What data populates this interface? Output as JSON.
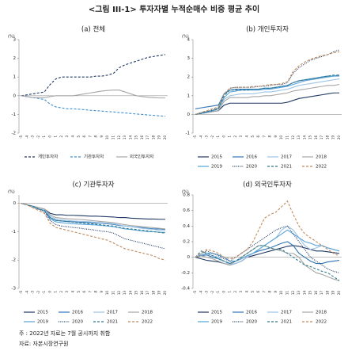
{
  "header": {
    "title": "<그림 III-1> 투자자별 누적순매수 비중 평균 추이"
  },
  "notes": [
    "주 : 2022년 자료는 7월 공시까지 취함",
    "자료: 자본시장연구원"
  ],
  "chart_data": [
    {
      "type": "line",
      "title": "(a) 전체",
      "y_unit": "(%)",
      "legend": "bottom",
      "legend_columns": 3,
      "grid": false,
      "categories": [
        "-5",
        "-4",
        "-3",
        "-2",
        "-1",
        "0",
        "1",
        "2",
        "3",
        "4",
        "5",
        "6",
        "7",
        "8",
        "9",
        "10",
        "11",
        "12",
        "13",
        "14",
        "15",
        "16",
        "17",
        "18",
        "19",
        "20"
      ],
      "ylim": [
        -2,
        3
      ],
      "yticks": [
        -2,
        -1,
        0,
        1,
        2,
        3
      ],
      "series": [
        {
          "name": "개인투자자",
          "color": "#1f3864",
          "dash": "dashed",
          "values": [
            0,
            0.05,
            0.1,
            0.15,
            0.2,
            0.6,
            0.9,
            1.0,
            1.0,
            1.0,
            1.0,
            1.0,
            1.0,
            1.05,
            1.05,
            1.1,
            1.2,
            1.5,
            1.65,
            1.75,
            1.85,
            1.95,
            2.05,
            2.1,
            2.15,
            2.2
          ]
        },
        {
          "name": "기관투자자",
          "color": "#3d8fd1",
          "dash": "dashed",
          "values": [
            0,
            -0.05,
            -0.1,
            -0.15,
            -0.2,
            -0.45,
            -0.6,
            -0.65,
            -0.7,
            -0.7,
            -0.72,
            -0.75,
            -0.78,
            -0.8,
            -0.82,
            -0.85,
            -0.87,
            -0.9,
            -0.92,
            -0.95,
            -0.98,
            -1.0,
            -1.03,
            -1.05,
            -1.08,
            -1.1
          ]
        },
        {
          "name": "외국인투자자",
          "color": "#a6a6a6",
          "dash": "solid",
          "values": [
            0,
            -0.05,
            -0.1,
            -0.1,
            -0.1,
            -0.05,
            0,
            0,
            0,
            0,
            0.05,
            0.1,
            0.15,
            0.2,
            0.25,
            0.28,
            0.3,
            0.3,
            0.2,
            0.1,
            0,
            -0.05,
            -0.08,
            -0.1,
            -0.12,
            -0.12
          ]
        }
      ]
    },
    {
      "type": "line",
      "title": "(b) 개인투자자",
      "y_unit": "(%)",
      "legend": "bottom",
      "legend_columns": 4,
      "grid": false,
      "categories": [
        "-5",
        "-4",
        "-3",
        "-2",
        "-1",
        "0",
        "1",
        "2",
        "3",
        "4",
        "5",
        "6",
        "7",
        "8",
        "9",
        "10",
        "11",
        "12",
        "13",
        "14",
        "15",
        "16",
        "17",
        "18",
        "19",
        "20"
      ],
      "ylim": [
        -1,
        4
      ],
      "yticks": [
        -1,
        0,
        1,
        2,
        3,
        4
      ],
      "series": [
        {
          "name": "2015",
          "color": "#1f3864",
          "dash": "solid",
          "values": [
            0,
            0.05,
            0.1,
            0.15,
            0.2,
            0.5,
            0.6,
            0.6,
            0.6,
            0.6,
            0.6,
            0.6,
            0.6,
            0.6,
            0.6,
            0.6,
            0.65,
            0.75,
            0.85,
            0.9,
            0.95,
            1.0,
            1.05,
            1.1,
            1.15,
            1.15
          ]
        },
        {
          "name": "2016",
          "color": "#2e75b6",
          "dash": "solid",
          "values": [
            0.3,
            0.35,
            0.4,
            0.45,
            0.5,
            1.1,
            1.3,
            1.35,
            1.35,
            1.35,
            1.35,
            1.35,
            1.4,
            1.4,
            1.45,
            1.5,
            1.55,
            1.7,
            1.8,
            1.85,
            1.9,
            1.95,
            2.0,
            2.05,
            2.05,
            2.1
          ]
        },
        {
          "name": "2017",
          "color": "#9dc3e6",
          "dash": "solid",
          "values": [
            0,
            0.1,
            0.15,
            0.2,
            0.3,
            0.8,
            1.0,
            1.05,
            1.1,
            1.1,
            1.1,
            1.15,
            1.2,
            1.2,
            1.25,
            1.3,
            1.35,
            1.45,
            1.55,
            1.6,
            1.65,
            1.7,
            1.75,
            1.8,
            1.85,
            1.9
          ]
        },
        {
          "name": "2018",
          "color": "#a6a6a6",
          "dash": "solid",
          "values": [
            0,
            0.05,
            0.1,
            0.15,
            0.2,
            0.7,
            0.9,
            0.9,
            0.9,
            0.9,
            0.95,
            0.95,
            1.0,
            1.0,
            1.05,
            1.1,
            1.15,
            1.25,
            1.3,
            1.35,
            1.4,
            1.45,
            1.5,
            1.55,
            1.55,
            1.6
          ]
        },
        {
          "name": "2019",
          "color": "#5ba3d9",
          "dash": "solid",
          "values": [
            0,
            0.05,
            0.1,
            0.2,
            0.3,
            0.9,
            1.2,
            1.25,
            1.3,
            1.3,
            1.3,
            1.3,
            1.35,
            1.35,
            1.4,
            1.45,
            1.5,
            1.6,
            1.7,
            1.8,
            1.85,
            1.9,
            1.95,
            2.0,
            2.05,
            2.05
          ]
        },
        {
          "name": "2020",
          "color": "#1f3864",
          "dash": "dotted",
          "values": [
            0,
            0.1,
            0.15,
            0.25,
            0.35,
            1.1,
            1.4,
            1.45,
            1.45,
            1.45,
            1.45,
            1.5,
            1.5,
            1.55,
            1.6,
            1.6,
            1.7,
            2.2,
            2.5,
            2.7,
            2.9,
            3.0,
            3.1,
            3.2,
            3.35,
            3.45
          ]
        },
        {
          "name": "2021",
          "color": "#2b7a8c",
          "dash": "dashed",
          "values": [
            0,
            0.05,
            0.15,
            0.2,
            0.3,
            1.0,
            1.3,
            1.3,
            1.3,
            1.3,
            1.35,
            1.35,
            1.4,
            1.4,
            1.45,
            1.5,
            1.55,
            1.7,
            1.8,
            1.85,
            1.9,
            1.95,
            2.0,
            2.05,
            2.1,
            2.1
          ]
        },
        {
          "name": "2022",
          "color": "#c0895a",
          "dash": "dashed",
          "values": [
            0,
            0.1,
            0.2,
            0.3,
            0.4,
            1.1,
            1.4,
            1.45,
            1.45,
            1.45,
            1.5,
            1.5,
            1.55,
            1.6,
            1.6,
            1.65,
            1.75,
            2.3,
            2.6,
            2.8,
            2.95,
            3.05,
            3.15,
            3.2,
            3.3,
            3.35
          ]
        }
      ]
    },
    {
      "type": "line",
      "title": "(c) 기관투자자",
      "y_unit": "(%)",
      "legend": "bottom",
      "legend_columns": 4,
      "grid": false,
      "categories": [
        "-5",
        "-4",
        "-3",
        "-2",
        "-1",
        "0",
        "1",
        "2",
        "3",
        "4",
        "5",
        "6",
        "7",
        "8",
        "9",
        "10",
        "11",
        "12",
        "13",
        "14",
        "15",
        "16",
        "17",
        "18",
        "19",
        "20"
      ],
      "ylim": [
        -3,
        0.3
      ],
      "yticks": [
        -3,
        -2,
        -1,
        0
      ],
      "series": [
        {
          "name": "2015",
          "color": "#1f3864",
          "dash": "solid",
          "values": [
            0,
            -0.05,
            -0.1,
            -0.15,
            -0.2,
            -0.35,
            -0.4,
            -0.4,
            -0.42,
            -0.42,
            -0.43,
            -0.44,
            -0.45,
            -0.45,
            -0.46,
            -0.47,
            -0.48,
            -0.5,
            -0.5,
            -0.52,
            -0.53,
            -0.54,
            -0.55,
            -0.55,
            -0.56,
            -0.56
          ]
        },
        {
          "name": "2016",
          "color": "#2e75b6",
          "dash": "solid",
          "values": [
            0,
            -0.05,
            -0.1,
            -0.2,
            -0.25,
            -0.5,
            -0.6,
            -0.62,
            -0.64,
            -0.65,
            -0.66,
            -0.67,
            -0.68,
            -0.7,
            -0.7,
            -0.72,
            -0.74,
            -0.78,
            -0.8,
            -0.82,
            -0.84,
            -0.86,
            -0.88,
            -0.9,
            -0.9,
            -0.92
          ]
        },
        {
          "name": "2017",
          "color": "#9dc3e6",
          "dash": "solid",
          "values": [
            0,
            -0.05,
            -0.1,
            -0.15,
            -0.2,
            -0.45,
            -0.55,
            -0.58,
            -0.6,
            -0.62,
            -0.63,
            -0.64,
            -0.65,
            -0.67,
            -0.68,
            -0.7,
            -0.72,
            -0.76,
            -0.8,
            -0.82,
            -0.85,
            -0.88,
            -0.9,
            -0.92,
            -0.95,
            -0.97
          ]
        },
        {
          "name": "2018",
          "color": "#a6a6a6",
          "dash": "solid",
          "values": [
            0,
            -0.05,
            -0.1,
            -0.15,
            -0.2,
            -0.4,
            -0.5,
            -0.52,
            -0.54,
            -0.55,
            -0.56,
            -0.58,
            -0.6,
            -0.62,
            -0.64,
            -0.66,
            -0.68,
            -0.72,
            -0.75,
            -0.78,
            -0.8,
            -0.82,
            -0.84,
            -0.86,
            -0.88,
            -0.9
          ]
        },
        {
          "name": "2019",
          "color": "#5ba3d9",
          "dash": "solid",
          "values": [
            0,
            -0.05,
            -0.1,
            -0.2,
            -0.25,
            -0.55,
            -0.65,
            -0.68,
            -0.7,
            -0.72,
            -0.73,
            -0.74,
            -0.75,
            -0.76,
            -0.78,
            -0.8,
            -0.82,
            -0.86,
            -0.9,
            -0.92,
            -0.95,
            -0.97,
            -1.0,
            -1.0,
            -1.02,
            -1.03
          ]
        },
        {
          "name": "2020",
          "color": "#1f3864",
          "dash": "dotted",
          "values": [
            0,
            -0.05,
            -0.15,
            -0.2,
            -0.3,
            -0.6,
            -0.75,
            -0.8,
            -0.82,
            -0.85,
            -0.87,
            -0.9,
            -0.92,
            -0.95,
            -0.98,
            -1.0,
            -1.05,
            -1.15,
            -1.25,
            -1.3,
            -1.35,
            -1.4,
            -1.45,
            -1.5,
            -1.55,
            -1.6
          ]
        },
        {
          "name": "2021",
          "color": "#2b7a8c",
          "dash": "dashed",
          "values": [
            0,
            -0.05,
            -0.1,
            -0.2,
            -0.25,
            -0.5,
            -0.6,
            -0.62,
            -0.64,
            -0.66,
            -0.68,
            -0.7,
            -0.72,
            -0.74,
            -0.76,
            -0.78,
            -0.8,
            -0.85,
            -0.88,
            -0.9,
            -0.92,
            -0.95,
            -0.97,
            -1.0,
            -1.02,
            -1.05
          ]
        },
        {
          "name": "2022",
          "color": "#c0895a",
          "dash": "dashed",
          "values": [
            0,
            -0.05,
            -0.15,
            -0.25,
            -0.35,
            -0.7,
            -0.85,
            -0.9,
            -0.95,
            -1.0,
            -1.05,
            -1.1,
            -1.15,
            -1.2,
            -1.25,
            -1.3,
            -1.4,
            -1.5,
            -1.6,
            -1.65,
            -1.7,
            -1.75,
            -1.8,
            -1.85,
            -1.95,
            -2.0
          ]
        }
      ]
    },
    {
      "type": "line",
      "title": "(d) 외국인투자자",
      "y_unit": "(%)",
      "legend": "bottom",
      "legend_columns": 4,
      "grid": false,
      "categories": [
        "-5",
        "-4",
        "-3",
        "-2",
        "-1",
        "0",
        "1",
        "2",
        "3",
        "4",
        "5",
        "6",
        "7",
        "8",
        "9",
        "10",
        "11",
        "12",
        "13",
        "14",
        "15",
        "16",
        "17",
        "18",
        "19",
        "20"
      ],
      "ylim": [
        -0.4,
        0.8
      ],
      "yticks": [
        -0.4,
        -0.2,
        0,
        0.2,
        0.4,
        0.6,
        0.8
      ],
      "series": [
        {
          "name": "2015",
          "color": "#1f3864",
          "dash": "solid",
          "values": [
            0,
            -0.02,
            -0.04,
            -0.05,
            -0.06,
            -0.08,
            -0.1,
            -0.08,
            -0.05,
            0,
            0.02,
            0.04,
            0.06,
            0.08,
            0.1,
            0.12,
            0.14,
            0.15,
            0.14,
            0.12,
            0.1,
            0.08,
            0.08,
            0.07,
            0.06,
            0.05
          ]
        },
        {
          "name": "2016",
          "color": "#2e75b6",
          "dash": "solid",
          "values": [
            0,
            0.02,
            0.03,
            0,
            -0.02,
            -0.05,
            -0.08,
            -0.05,
            -0.02,
            0.02,
            0.05,
            0.08,
            0.1,
            0.12,
            0.15,
            0.18,
            0.2,
            0.15,
            0.05,
            0,
            -0.05,
            -0.08,
            -0.08,
            -0.06,
            -0.05,
            -0.04
          ]
        },
        {
          "name": "2017",
          "color": "#9dc3e6",
          "dash": "solid",
          "values": [
            0,
            0.03,
            0.05,
            0.02,
            0,
            -0.05,
            -0.1,
            -0.08,
            -0.05,
            0,
            0.05,
            0.1,
            0.15,
            0.2,
            0.25,
            0.35,
            0.4,
            0.35,
            0.25,
            0.15,
            0.1,
            0.12,
            0.15,
            0.12,
            0.1,
            0.08
          ]
        },
        {
          "name": "2018",
          "color": "#a6a6a6",
          "dash": "solid",
          "values": [
            0,
            0.02,
            0,
            -0.02,
            -0.05,
            -0.08,
            -0.1,
            -0.05,
            0,
            0.05,
            0.1,
            0.15,
            0.15,
            0.12,
            0.1,
            0.08,
            0.05,
            0.05,
            0,
            -0.1,
            -0.15,
            -0.2,
            -0.22,
            -0.25,
            -0.28,
            -0.3
          ]
        },
        {
          "name": "2019",
          "color": "#5ba3d9",
          "dash": "solid",
          "values": [
            0,
            0.03,
            0.05,
            0.05,
            0.03,
            0,
            -0.05,
            -0.05,
            -0.02,
            0.02,
            0.05,
            0.1,
            0.15,
            0.2,
            0.25,
            0.3,
            0.35,
            0.3,
            0.25,
            0.2,
            0.18,
            0.15,
            0.15,
            0.12,
            0.1,
            0.08
          ]
        },
        {
          "name": "2020",
          "color": "#1f3864",
          "dash": "dotted",
          "values": [
            0,
            0.05,
            0.08,
            0.05,
            0.02,
            -0.02,
            -0.05,
            0,
            0.05,
            0.1,
            0.15,
            0.2,
            0.25,
            0.3,
            0.35,
            0.38,
            0.4,
            0.3,
            0.2,
            0.1,
            0,
            -0.05,
            -0.1,
            -0.15,
            -0.18,
            -0.2
          ]
        },
        {
          "name": "2021",
          "color": "#2b7a8c",
          "dash": "dashed",
          "values": [
            0,
            0.08,
            0.05,
            0.02,
            -0.02,
            -0.05,
            -0.08,
            -0.05,
            0,
            0.05,
            0.1,
            0.15,
            0.15,
            0.12,
            0.1,
            0.1,
            0.05,
            0,
            -0.05,
            -0.1,
            -0.12,
            -0.15,
            -0.18,
            -0.2,
            -0.25,
            -0.3
          ]
        },
        {
          "name": "2022",
          "color": "#c0895a",
          "dash": "dashed",
          "values": [
            0,
            0.05,
            0.1,
            0.08,
            0.05,
            0,
            -0.02,
            0,
            0.05,
            0.1,
            0.2,
            0.35,
            0.5,
            0.55,
            0.58,
            0.65,
            0.72,
            0.55,
            0.4,
            0.3,
            0.25,
            0.2,
            0.15,
            0.1,
            0.05,
            0.02
          ]
        }
      ]
    }
  ]
}
